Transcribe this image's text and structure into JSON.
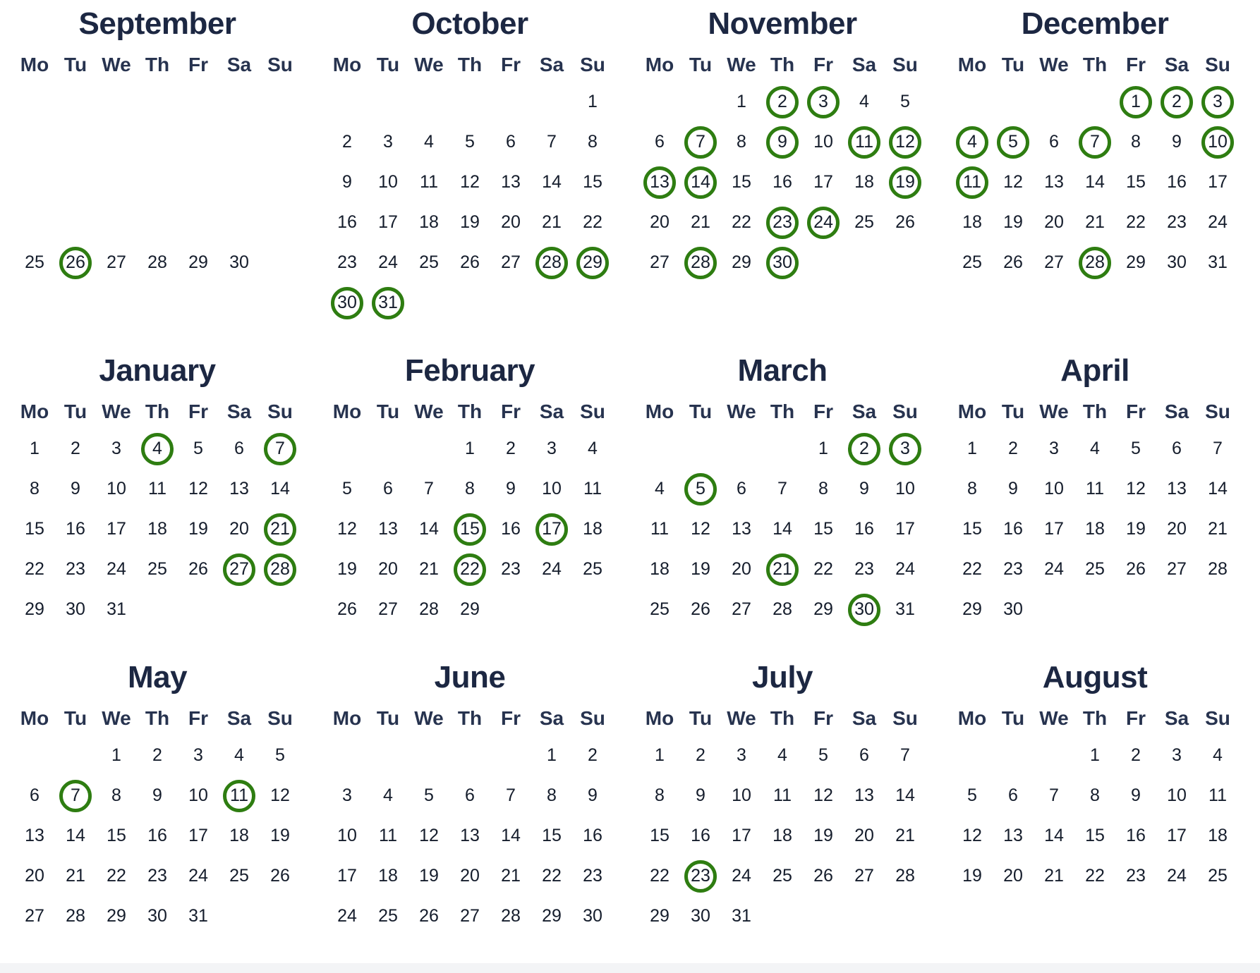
{
  "page": {
    "background": "#ffffff",
    "bottom_strip_color": "#f3f4f6"
  },
  "colors": {
    "title": "#1c2742",
    "weekday": "#27334f",
    "day": "#151d2c",
    "circle": "#2e7d11"
  },
  "weekday_labels": [
    "Mo",
    "Tu",
    "We",
    "Th",
    "Fr",
    "Sa",
    "Su"
  ],
  "months": [
    {
      "title": "September",
      "weeks": [
        [
          "",
          "",
          "",
          "",
          "",
          "",
          ""
        ],
        [
          "",
          "",
          "",
          "",
          "",
          "",
          ""
        ],
        [
          "",
          "",
          "",
          "",
          "",
          "",
          ""
        ],
        [
          "",
          "",
          "",
          "",
          "",
          "",
          ""
        ],
        [
          "25",
          "26",
          "27",
          "28",
          "29",
          "30",
          ""
        ]
      ],
      "circled": [
        26
      ]
    },
    {
      "title": "October",
      "weeks": [
        [
          "",
          "",
          "",
          "",
          "",
          "",
          "1"
        ],
        [
          "2",
          "3",
          "4",
          "5",
          "6",
          "7",
          "8"
        ],
        [
          "9",
          "10",
          "11",
          "12",
          "13",
          "14",
          "15"
        ],
        [
          "16",
          "17",
          "18",
          "19",
          "20",
          "21",
          "22"
        ],
        [
          "23",
          "24",
          "25",
          "26",
          "27",
          "28",
          "29"
        ],
        [
          "30",
          "31",
          "",
          "",
          "",
          "",
          ""
        ]
      ],
      "circled": [
        28,
        29,
        30,
        31
      ]
    },
    {
      "title": "November",
      "weeks": [
        [
          "",
          "",
          "1",
          "2",
          "3",
          "4",
          "5"
        ],
        [
          "6",
          "7",
          "8",
          "9",
          "10",
          "11",
          "12"
        ],
        [
          "13",
          "14",
          "15",
          "16",
          "17",
          "18",
          "19"
        ],
        [
          "20",
          "21",
          "22",
          "23",
          "24",
          "25",
          "26"
        ],
        [
          "27",
          "28",
          "29",
          "30",
          "",
          "",
          ""
        ]
      ],
      "circled": [
        2,
        3,
        7,
        9,
        11,
        12,
        13,
        14,
        19,
        23,
        24,
        28,
        30
      ]
    },
    {
      "title": "December",
      "weeks": [
        [
          "",
          "",
          "",
          "",
          "1",
          "2",
          "3"
        ],
        [
          "4",
          "5",
          "6",
          "7",
          "8",
          "9",
          "10"
        ],
        [
          "11",
          "12",
          "13",
          "14",
          "15",
          "16",
          "17"
        ],
        [
          "18",
          "19",
          "20",
          "21",
          "22",
          "23",
          "24"
        ],
        [
          "25",
          "26",
          "27",
          "28",
          "29",
          "30",
          "31"
        ]
      ],
      "circled": [
        1,
        2,
        3,
        4,
        5,
        7,
        10,
        11,
        28
      ]
    },
    {
      "title": "January",
      "weeks": [
        [
          "1",
          "2",
          "3",
          "4",
          "5",
          "6",
          "7"
        ],
        [
          "8",
          "9",
          "10",
          "11",
          "12",
          "13",
          "14"
        ],
        [
          "15",
          "16",
          "17",
          "18",
          "19",
          "20",
          "21"
        ],
        [
          "22",
          "23",
          "24",
          "25",
          "26",
          "27",
          "28"
        ],
        [
          "29",
          "30",
          "31",
          "",
          "",
          "",
          ""
        ]
      ],
      "circled": [
        4,
        7,
        21,
        27,
        28
      ]
    },
    {
      "title": "February",
      "weeks": [
        [
          "",
          "",
          "",
          "1",
          "2",
          "3",
          "4"
        ],
        [
          "5",
          "6",
          "7",
          "8",
          "9",
          "10",
          "11"
        ],
        [
          "12",
          "13",
          "14",
          "15",
          "16",
          "17",
          "18"
        ],
        [
          "19",
          "20",
          "21",
          "22",
          "23",
          "24",
          "25"
        ],
        [
          "26",
          "27",
          "28",
          "29",
          "",
          "",
          ""
        ]
      ],
      "circled": [
        15,
        17,
        22
      ]
    },
    {
      "title": "March",
      "weeks": [
        [
          "",
          "",
          "",
          "",
          "1",
          "2",
          "3"
        ],
        [
          "4",
          "5",
          "6",
          "7",
          "8",
          "9",
          "10"
        ],
        [
          "11",
          "12",
          "13",
          "14",
          "15",
          "16",
          "17"
        ],
        [
          "18",
          "19",
          "20",
          "21",
          "22",
          "23",
          "24"
        ],
        [
          "25",
          "26",
          "27",
          "28",
          "29",
          "30",
          "31"
        ]
      ],
      "circled": [
        2,
        3,
        5,
        21,
        30
      ]
    },
    {
      "title": "April",
      "weeks": [
        [
          "1",
          "2",
          "3",
          "4",
          "5",
          "6",
          "7"
        ],
        [
          "8",
          "9",
          "10",
          "11",
          "12",
          "13",
          "14"
        ],
        [
          "15",
          "16",
          "17",
          "18",
          "19",
          "20",
          "21"
        ],
        [
          "22",
          "23",
          "24",
          "25",
          "26",
          "27",
          "28"
        ],
        [
          "29",
          "30",
          "",
          "",
          "",
          "",
          ""
        ]
      ],
      "circled": []
    },
    {
      "title": "May",
      "weeks": [
        [
          "",
          "",
          "1",
          "2",
          "3",
          "4",
          "5"
        ],
        [
          "6",
          "7",
          "8",
          "9",
          "10",
          "11",
          "12"
        ],
        [
          "13",
          "14",
          "15",
          "16",
          "17",
          "18",
          "19"
        ],
        [
          "20",
          "21",
          "22",
          "23",
          "24",
          "25",
          "26"
        ],
        [
          "27",
          "28",
          "29",
          "30",
          "31",
          "",
          ""
        ]
      ],
      "circled": [
        7,
        11
      ]
    },
    {
      "title": "June",
      "weeks": [
        [
          "",
          "",
          "",
          "",
          "",
          "1",
          "2"
        ],
        [
          "3",
          "4",
          "5",
          "6",
          "7",
          "8",
          "9"
        ],
        [
          "10",
          "11",
          "12",
          "13",
          "14",
          "15",
          "16"
        ],
        [
          "17",
          "18",
          "19",
          "20",
          "21",
          "22",
          "23"
        ],
        [
          "24",
          "25",
          "26",
          "27",
          "28",
          "29",
          "30"
        ]
      ],
      "circled": []
    },
    {
      "title": "July",
      "weeks": [
        [
          "1",
          "2",
          "3",
          "4",
          "5",
          "6",
          "7"
        ],
        [
          "8",
          "9",
          "10",
          "11",
          "12",
          "13",
          "14"
        ],
        [
          "15",
          "16",
          "17",
          "18",
          "19",
          "20",
          "21"
        ],
        [
          "22",
          "23",
          "24",
          "25",
          "26",
          "27",
          "28"
        ],
        [
          "29",
          "30",
          "31",
          "",
          "",
          "",
          ""
        ]
      ],
      "circled": [
        23
      ]
    },
    {
      "title": "August",
      "weeks": [
        [
          "",
          "",
          "",
          "1",
          "2",
          "3",
          "4"
        ],
        [
          "5",
          "6",
          "7",
          "8",
          "9",
          "10",
          "11"
        ],
        [
          "12",
          "13",
          "14",
          "15",
          "16",
          "17",
          "18"
        ],
        [
          "19",
          "20",
          "21",
          "22",
          "23",
          "24",
          "25"
        ]
      ],
      "circled": []
    }
  ]
}
